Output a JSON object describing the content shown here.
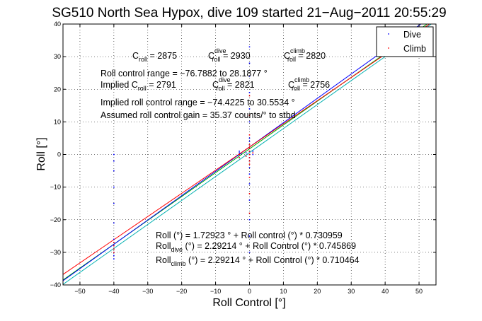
{
  "chart_data": {
    "type": "scatter",
    "title": "SG510 North Sea Hypox, dive 109 started 21−Aug−2011 20:55:29",
    "xlabel": "Roll Control [°]",
    "ylabel": "Roll [°]",
    "xlim": [
      -55,
      55
    ],
    "ylim": [
      -40,
      40
    ],
    "xticks": [
      -50,
      -40,
      -30,
      -20,
      -10,
      0,
      10,
      20,
      30,
      40,
      50
    ],
    "yticks": [
      -40,
      -30,
      -20,
      -10,
      0,
      10,
      20,
      30,
      40
    ],
    "xtick_labels": [
      "−50",
      "−40",
      "−30",
      "−20",
      "−10",
      "0",
      "10",
      "20",
      "30",
      "40",
      "50"
    ],
    "ytick_labels": [
      "−40",
      "−30",
      "−20",
      "−10",
      "0",
      "10",
      "20",
      "30",
      "40"
    ],
    "grid": true,
    "grid_style": "dotted",
    "legend_position": "top-right",
    "series": [
      {
        "name": "Dive",
        "color": "#0000ff",
        "marker": "dot",
        "points": [
          [
            -40,
            -26
          ],
          [
            -40,
            -27
          ],
          [
            -40,
            -28
          ],
          [
            -40,
            -29
          ],
          [
            -40,
            -30
          ],
          [
            -40,
            -31
          ],
          [
            -40,
            -32
          ],
          [
            -40,
            -15
          ],
          [
            -40,
            -10
          ],
          [
            -40,
            -5
          ],
          [
            -40,
            -2
          ],
          [
            -40,
            -21
          ],
          [
            -40,
            0
          ],
          [
            -3,
            -1
          ],
          [
            -3,
            0
          ],
          [
            -3,
            1
          ],
          [
            -3,
            0.5
          ],
          [
            -2.5,
            0.2
          ],
          [
            -3.5,
            -0.3
          ],
          [
            0,
            -2
          ],
          [
            0,
            -1
          ],
          [
            0,
            0
          ],
          [
            0,
            1
          ],
          [
            0,
            2
          ],
          [
            0,
            3
          ],
          [
            0,
            4
          ],
          [
            0,
            5
          ],
          [
            0,
            -4
          ],
          [
            0,
            -6
          ],
          [
            0,
            -9
          ],
          [
            0,
            -14
          ],
          [
            0,
            -20
          ],
          [
            0,
            -25
          ],
          [
            0,
            -30
          ],
          [
            0,
            10
          ],
          [
            0,
            14
          ],
          [
            0,
            19
          ],
          [
            0,
            24
          ],
          [
            0,
            28
          ],
          [
            0,
            33
          ],
          [
            1,
            0
          ],
          [
            1,
            1
          ],
          [
            -1,
            -0.5
          ],
          [
            -1,
            0.5
          ]
        ]
      },
      {
        "name": "Climb",
        "color": "#ff0000",
        "marker": "dot",
        "points": [
          [
            -40,
            -27
          ],
          [
            -40,
            -28
          ],
          [
            -40,
            -29
          ],
          [
            -40,
            -30
          ],
          [
            0,
            -3
          ],
          [
            0,
            -2
          ],
          [
            0,
            -1
          ],
          [
            0,
            0
          ],
          [
            0,
            1
          ],
          [
            0,
            2
          ],
          [
            0,
            3
          ],
          [
            0,
            -7
          ],
          [
            0,
            -12
          ],
          [
            0,
            -18
          ],
          [
            0,
            6
          ],
          [
            0,
            12
          ],
          [
            0,
            18
          ],
          [
            -3,
            -1
          ],
          [
            -3,
            0
          ],
          [
            1,
            0.5
          ],
          [
            -1,
            -0.5
          ]
        ]
      }
    ],
    "fit_lines": [
      {
        "label": "Roll (°) = 1.72923 ° + Roll control (°) * 0.730959",
        "intercept": 1.72923,
        "slope": 0.730959,
        "color": "#00aa00"
      },
      {
        "label": "dive",
        "intercept": 2.29214,
        "slope": 0.745869,
        "color": "#0000ff"
      },
      {
        "label": "climb",
        "intercept": 2.29214,
        "slope": 0.710464,
        "color": "#ff0000"
      },
      {
        "label": "implied",
        "intercept": 0.6,
        "slope": 0.735,
        "color": "#00b0b0"
      }
    ],
    "annotations": {
      "c_roll": {
        "label": "C",
        "sub": "roll",
        "value": " = 2875"
      },
      "c_roll_dive": {
        "label": "C",
        "sup": "dive",
        "sub": "roll",
        "value": " = 2930"
      },
      "c_roll_climb": {
        "label": "C",
        "sup": "climb",
        "sub": "roll",
        "value": " = 2820"
      },
      "range": "Roll control range = −76.7882 to 28.1877 °",
      "implied_c_roll_prefix": "Implied C",
      "implied_c_roll_sub": "roll",
      "implied_c_roll_value": " = 2791",
      "implied_c_dive": {
        "label": "C",
        "sup": "dive",
        "sub": "roll",
        "value": " = 2821"
      },
      "implied_c_climb": {
        "label": "C",
        "sup": "climb",
        "sub": "roll",
        "value": " = 2756"
      },
      "implied_range": "Implied roll control range = −74.4225 to 30.5534 °",
      "gain": "Assumed roll control gain = 35.37 counts/° to stbd",
      "eq_all": "Roll (°) = 1.72923 ° + Roll control (°) * 0.730959",
      "eq_dive_prefix": "Roll",
      "eq_dive_sub": "dive",
      "eq_dive_rest": " (°) = 2.29214 ° + Roll Control (°) * 0.745869",
      "eq_climb_prefix": "Roll",
      "eq_climb_sub": "climb",
      "eq_climb_rest": " (°) = 2.29214 ° + Roll Control (°) * 0.710464"
    }
  }
}
